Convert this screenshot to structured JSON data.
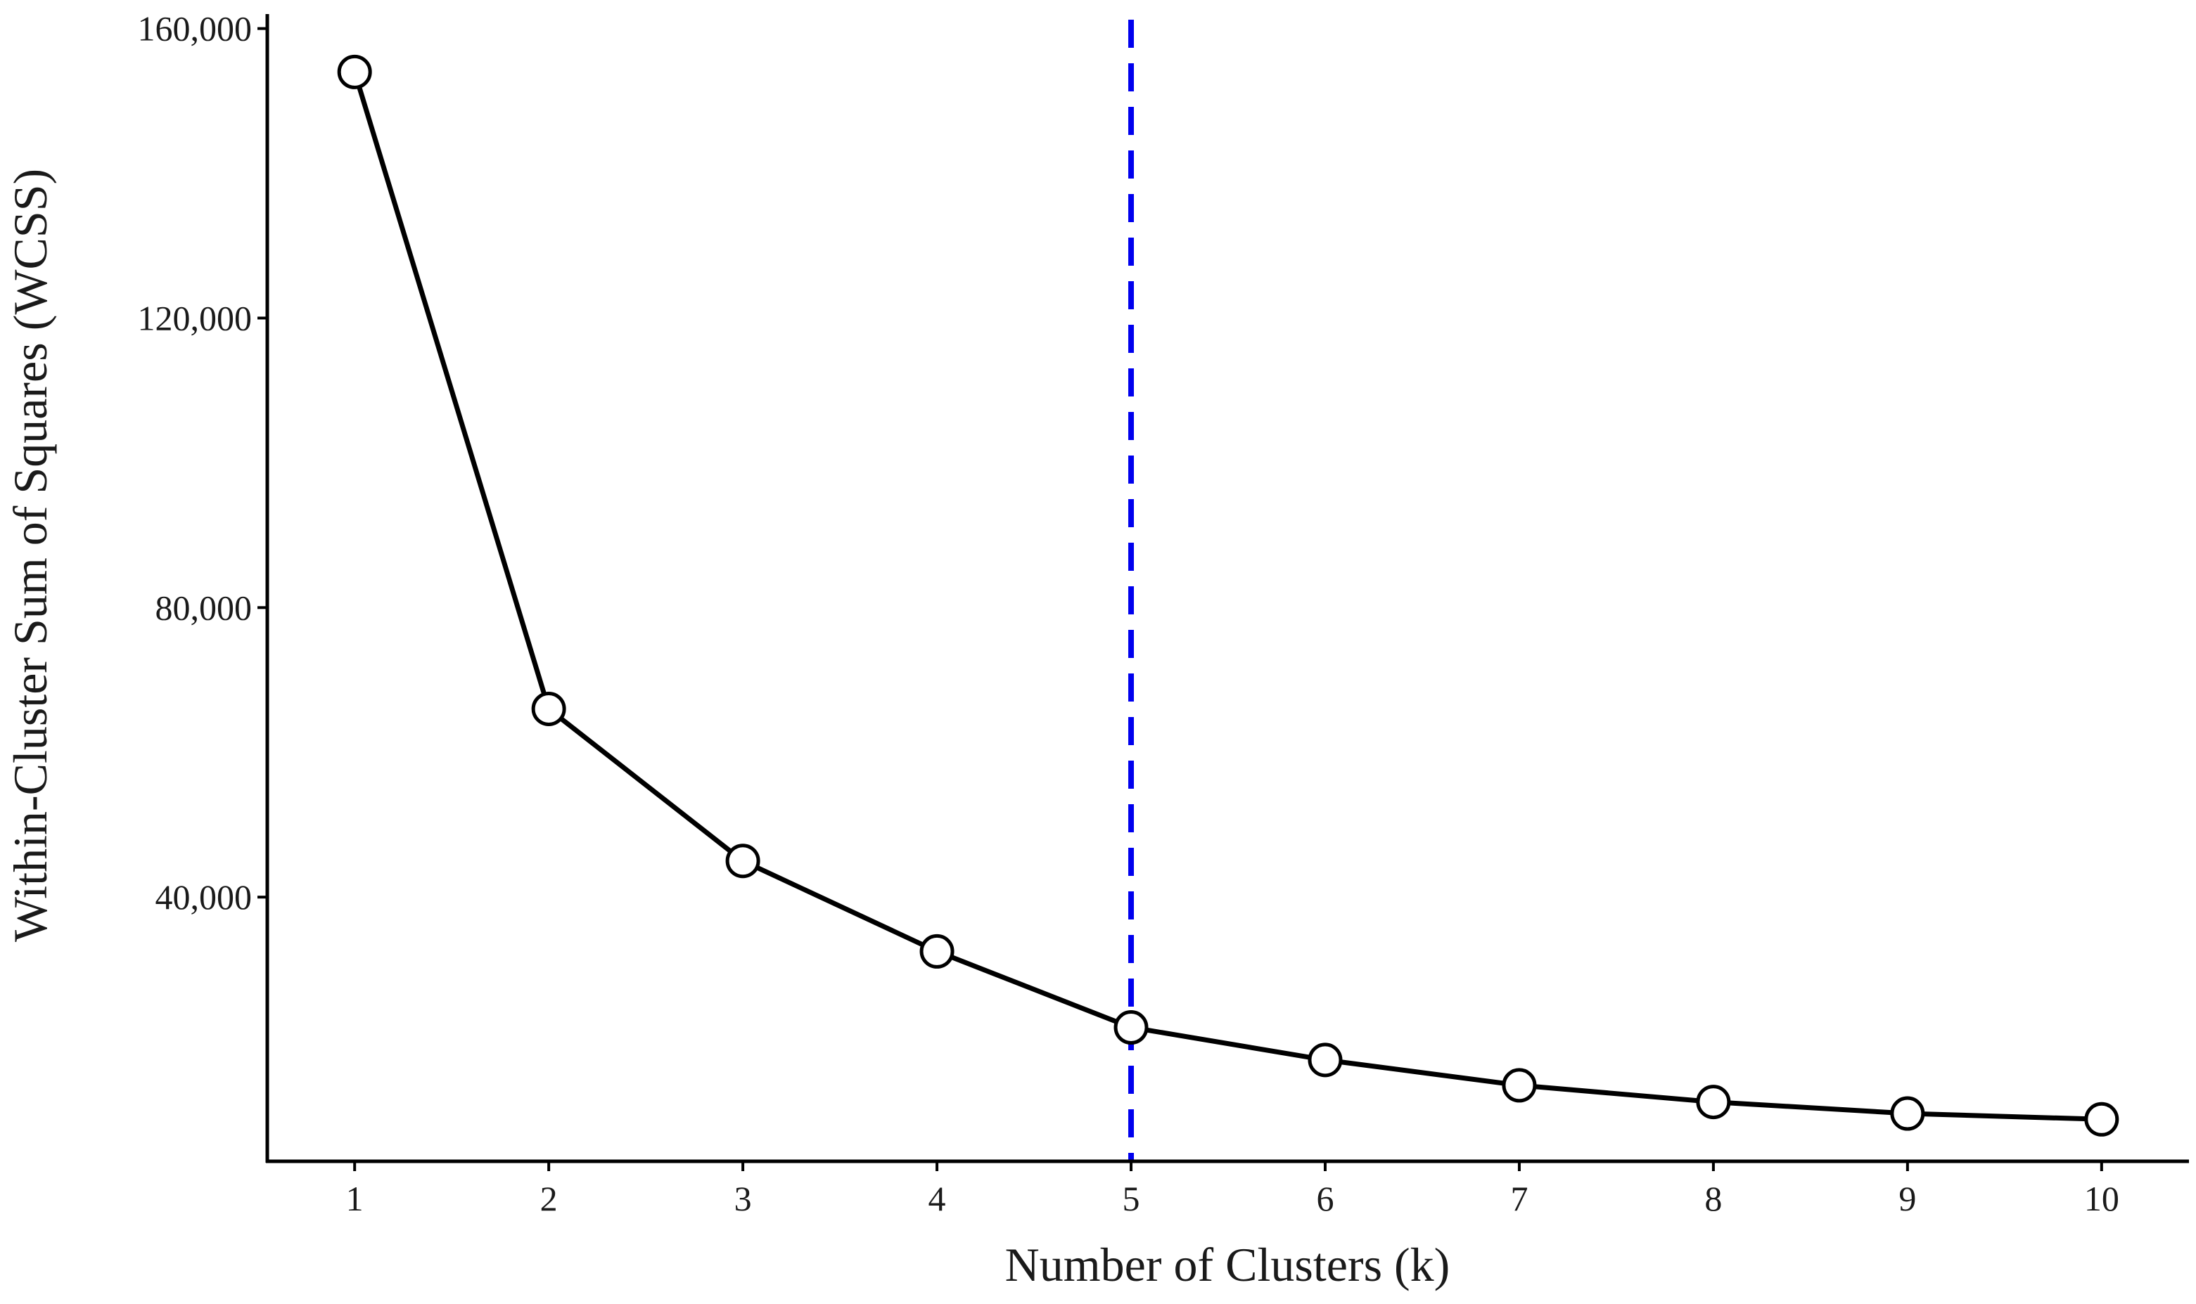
{
  "chart_data": {
    "type": "line",
    "title": "",
    "xlabel": "Number of Clusters (k)",
    "ylabel": "Within-Cluster Sum of Squares (WCSS)",
    "x": [
      1,
      2,
      3,
      4,
      5,
      6,
      7,
      8,
      9,
      10
    ],
    "y": [
      154000,
      66000,
      45000,
      32500,
      22000,
      17500,
      14000,
      11700,
      10100,
      9300
    ],
    "xticks": [
      1,
      2,
      3,
      4,
      5,
      6,
      7,
      8,
      9,
      10
    ],
    "xtick_labels": [
      "1",
      "2",
      "3",
      "4",
      "5",
      "6",
      "7",
      "8",
      "9",
      "10"
    ],
    "yticks": [
      40000,
      80000,
      120000,
      160000
    ],
    "ytick_labels": [
      "40,000",
      "80,000",
      "120,000",
      "160,000"
    ],
    "xlim": [
      0.55,
      10.45
    ],
    "ylim": [
      3500,
      162000
    ],
    "vline": {
      "x": 5,
      "color": "#0000ee",
      "style": "dashed"
    },
    "line_color": "#000000",
    "marker": "open-circle",
    "grid": false,
    "legend": "none"
  }
}
